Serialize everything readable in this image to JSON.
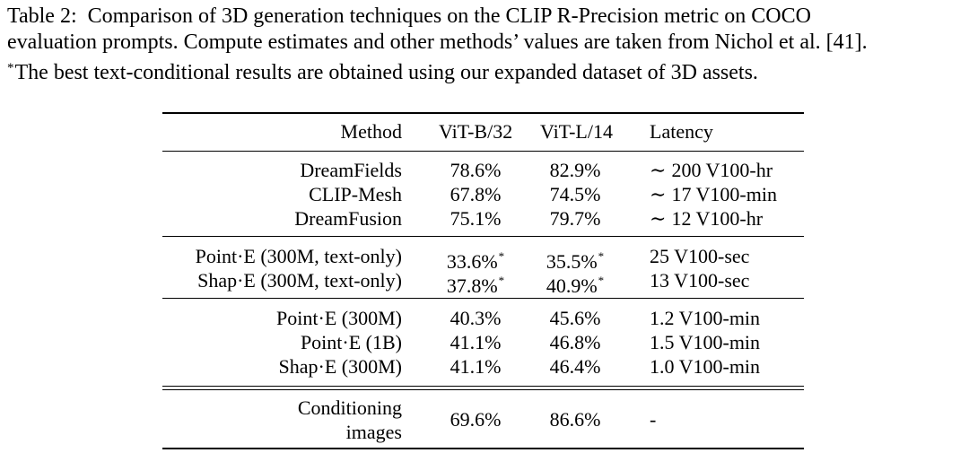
{
  "caption": {
    "label": "Table 2:",
    "line1": "Comparison of 3D generation techniques on the CLIP R-Precision metric on COCO",
    "line2": "evaluation prompts. Compute estimates and other methods’ values are taken from Nichol et al. [41].",
    "footnote_mark": "*",
    "line3": "The best text-conditional results are obtained using our expanded dataset of 3D assets."
  },
  "table": {
    "headers": {
      "method": "Method",
      "vitb": "ViT-B/32",
      "vitl": "ViT-L/14",
      "latency": "Latency"
    },
    "approx_symbol": "∼",
    "footnote_mark": "*",
    "groups": [
      {
        "rows": [
          {
            "method": "DreamFields",
            "vitb": "78.6%",
            "vitb_star": "",
            "vitl": "82.9%",
            "vitl_star": "",
            "latency_prefix": "∼",
            "latency": "200 V100-hr"
          },
          {
            "method": "CLIP-Mesh",
            "vitb": "67.8%",
            "vitb_star": "",
            "vitl": "74.5%",
            "vitl_star": "",
            "latency_prefix": "∼",
            "latency": "17 V100-min"
          },
          {
            "method": "DreamFusion",
            "vitb": "75.1%",
            "vitb_star": "",
            "vitl": "79.7%",
            "vitl_star": "",
            "latency_prefix": "∼",
            "latency": "12 V100-hr"
          }
        ]
      },
      {
        "rows": [
          {
            "method": "Point·E (300M, text-only)",
            "vitb": "33.6%",
            "vitb_star": "*",
            "vitl": "35.5%",
            "vitl_star": "*",
            "latency_prefix": "",
            "latency": "25 V100-sec"
          },
          {
            "method": "Shap·E (300M, text-only)",
            "vitb": "37.8%",
            "vitb_star": "*",
            "vitl": "40.9%",
            "vitl_star": "*",
            "latency_prefix": "",
            "latency": "13 V100-sec"
          }
        ]
      },
      {
        "rows": [
          {
            "method": "Point·E (300M)",
            "vitb": "40.3%",
            "vitb_star": "",
            "vitl": "45.6%",
            "vitl_star": "",
            "latency_prefix": "",
            "latency": "1.2 V100-min"
          },
          {
            "method": "Point·E (1B)",
            "vitb": "41.1%",
            "vitb_star": "",
            "vitl": "46.8%",
            "vitl_star": "",
            "latency_prefix": "",
            "latency": "1.5 V100-min"
          },
          {
            "method": "Shap·E (300M)",
            "vitb": "41.1%",
            "vitb_star": "",
            "vitl": "46.4%",
            "vitl_star": "",
            "latency_prefix": "",
            "latency": "1.0 V100-min"
          }
        ]
      }
    ],
    "final_row": {
      "method_line1": "Conditioning",
      "method_line2": "images",
      "vitb": "69.6%",
      "vitl": "86.6%",
      "latency": "-"
    }
  }
}
